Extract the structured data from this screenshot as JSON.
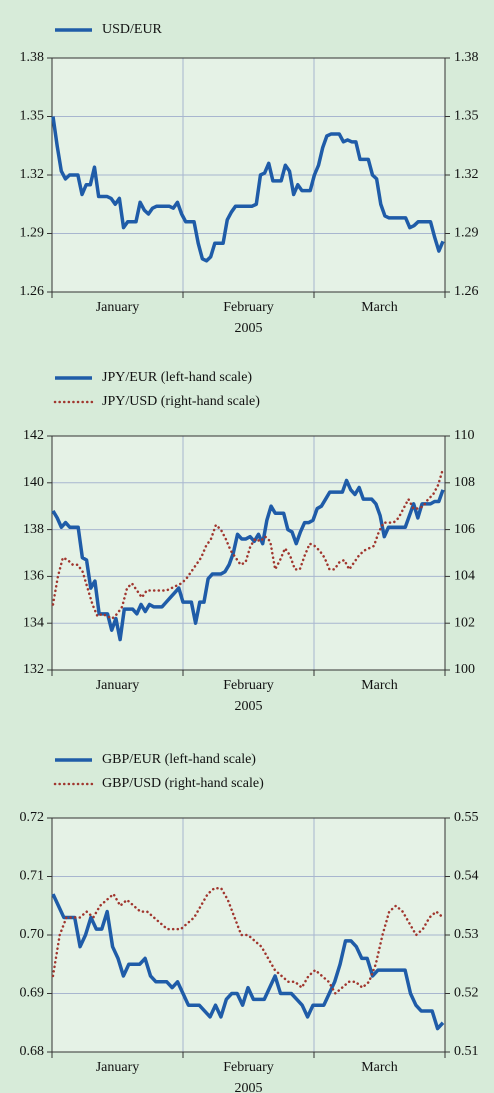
{
  "chart_data": [
    {
      "type": "line",
      "x_labels": [
        "January",
        "February",
        "March"
      ],
      "xlabel": "2005",
      "ylim": [
        1.26,
        1.38
      ],
      "yticks": [
        1.26,
        1.29,
        1.32,
        1.35,
        1.38
      ],
      "y2lim": [
        1.26,
        1.38
      ],
      "y2ticks": [
        1.26,
        1.29,
        1.32,
        1.35,
        1.38
      ],
      "grid": true,
      "series": [
        {
          "name": "USD/EUR",
          "color": "#1f5ca8",
          "style": "solid",
          "axis": "y",
          "values": [
            1.35,
            1.335,
            1.322,
            1.318,
            1.32,
            1.32,
            1.32,
            1.31,
            1.315,
            1.315,
            1.324,
            1.309,
            1.309,
            1.309,
            1.308,
            1.305,
            1.308,
            1.293,
            1.296,
            1.296,
            1.296,
            1.306,
            1.302,
            1.3,
            1.303,
            1.304,
            1.304,
            1.304,
            1.304,
            1.303,
            1.306,
            1.3,
            1.296,
            1.296,
            1.296,
            1.285,
            1.277,
            1.276,
            1.278,
            1.285,
            1.285,
            1.285,
            1.297,
            1.301,
            1.304,
            1.304,
            1.304,
            1.304,
            1.304,
            1.305,
            1.32,
            1.321,
            1.326,
            1.317,
            1.317,
            1.317,
            1.325,
            1.322,
            1.31,
            1.315,
            1.312,
            1.312,
            1.312,
            1.32,
            1.325,
            1.334,
            1.34,
            1.341,
            1.341,
            1.341,
            1.337,
            1.338,
            1.337,
            1.337,
            1.328,
            1.328,
            1.328,
            1.32,
            1.318,
            1.305,
            1.299,
            1.298,
            1.298,
            1.298,
            1.298,
            1.298,
            1.293,
            1.294,
            1.296,
            1.296,
            1.296,
            1.296,
            1.288,
            1.281,
            1.286
          ]
        }
      ]
    },
    {
      "type": "line",
      "x_labels": [
        "January",
        "February",
        "March"
      ],
      "xlabel": "2005",
      "ylim": [
        132,
        142
      ],
      "yticks": [
        132,
        134,
        136,
        138,
        140,
        142
      ],
      "y2lim": [
        100,
        110
      ],
      "y2ticks": [
        100,
        102,
        104,
        106,
        108,
        110
      ],
      "grid": true,
      "series": [
        {
          "name": "JPY/EUR (left-hand scale)",
          "color": "#1f5ca8",
          "style": "solid",
          "axis": "y",
          "values": [
            138.8,
            138.5,
            138.1,
            138.3,
            138.1,
            138.1,
            138.1,
            136.8,
            136.7,
            135.5,
            135.8,
            134.4,
            134.4,
            134.4,
            133.7,
            134.2,
            133.3,
            134.6,
            134.6,
            134.6,
            134.4,
            134.8,
            134.5,
            134.8,
            134.7,
            134.7,
            134.7,
            134.9,
            135.1,
            135.3,
            135.5,
            134.9,
            134.9,
            134.9,
            134.0,
            134.9,
            134.9,
            135.9,
            136.1,
            136.1,
            136.1,
            136.2,
            136.5,
            137.0,
            137.8,
            137.6,
            137.6,
            137.7,
            137.5,
            137.8,
            137.4,
            138.4,
            139.0,
            138.7,
            138.7,
            138.7,
            138.0,
            137.9,
            137.4,
            137.9,
            138.3,
            138.3,
            138.4,
            138.9,
            139.0,
            139.3,
            139.6,
            139.6,
            139.6,
            139.6,
            140.1,
            139.7,
            139.5,
            139.8,
            139.3,
            139.3,
            139.3,
            139.1,
            138.6,
            137.7,
            138.1,
            138.1,
            138.1,
            138.1,
            138.1,
            138.6,
            139.1,
            138.5,
            139.1,
            139.1,
            139.1,
            139.2,
            139.2,
            139.7
          ]
        },
        {
          "name": "JPY/USD (right-hand scale)",
          "color": "#a0362e",
          "style": "dotted",
          "axis": "y2",
          "values": [
            102.8,
            104.0,
            104.8,
            104.7,
            104.5,
            104.5,
            104.2,
            103.5,
            102.8,
            102.3,
            102.4,
            102.3,
            102.2,
            102.4,
            102.7,
            103.5,
            103.7,
            103.4,
            103.1,
            103.4,
            103.4,
            103.4,
            103.4,
            103.4,
            103.5,
            103.6,
            103.7,
            103.9,
            104.2,
            104.5,
            104.8,
            105.3,
            105.6,
            106.2,
            106.0,
            105.6,
            105.1,
            104.8,
            104.5,
            104.6,
            105.3,
            105.6,
            105.5,
            105.7,
            105.5,
            104.3,
            104.7,
            105.2,
            104.9,
            104.3,
            104.3,
            104.9,
            105.4,
            105.3,
            105.1,
            104.8,
            104.3,
            104.3,
            104.6,
            104.7,
            104.3,
            104.6,
            104.9,
            105.1,
            105.2,
            105.3,
            105.9,
            106.3,
            106.3,
            106.3,
            106.5,
            106.9,
            107.3,
            106.9,
            106.9,
            107.0,
            107.3,
            107.5,
            107.9,
            108.6
          ]
        }
      ]
    },
    {
      "type": "line",
      "x_labels": [
        "January",
        "February",
        "March"
      ],
      "xlabel": "2005",
      "ylim": [
        0.68,
        0.72
      ],
      "yticks": [
        0.68,
        0.69,
        {
          "value": 0.7,
          "label": "0.70"
        },
        0.71,
        0.72
      ],
      "y2lim": [
        0.51,
        0.55
      ],
      "y2ticks": [
        0.51,
        0.52,
        0.53,
        0.54,
        0.55
      ],
      "grid": true,
      "series": [
        {
          "name": "GBP/EUR (left-hand scale)",
          "color": "#1f5ca8",
          "style": "solid",
          "axis": "y",
          "values": [
            0.707,
            0.705,
            0.703,
            0.703,
            0.703,
            0.698,
            0.7,
            0.703,
            0.701,
            0.701,
            0.704,
            0.698,
            0.696,
            0.693,
            0.695,
            0.695,
            0.695,
            0.696,
            0.693,
            0.692,
            0.692,
            0.692,
            0.691,
            0.692,
            0.69,
            0.688,
            0.688,
            0.688,
            0.687,
            0.686,
            0.688,
            0.686,
            0.689,
            0.69,
            0.69,
            0.688,
            0.691,
            0.689,
            0.689,
            0.689,
            0.691,
            0.693,
            0.69,
            0.69,
            0.69,
            0.689,
            0.688,
            0.686,
            0.688,
            0.688,
            0.688,
            0.69,
            0.692,
            0.695,
            0.699,
            0.699,
            0.698,
            0.696,
            0.696,
            0.693,
            0.694,
            0.694,
            0.694,
            0.694,
            0.694,
            0.694,
            0.69,
            0.688,
            0.687,
            0.687,
            0.687,
            0.684,
            0.685
          ]
        },
        {
          "name": "GBP/USD (right-hand scale)",
          "color": "#a0362e",
          "style": "dotted",
          "axis": "y2",
          "values": [
            0.523,
            0.53,
            0.533,
            0.533,
            0.533,
            0.534,
            0.533,
            0.535,
            0.536,
            0.537,
            0.535,
            0.536,
            0.535,
            0.534,
            0.534,
            0.533,
            0.532,
            0.531,
            0.531,
            0.531,
            0.532,
            0.533,
            0.535,
            0.537,
            0.538,
            0.538,
            0.536,
            0.533,
            0.53,
            0.53,
            0.529,
            0.528,
            0.526,
            0.524,
            0.523,
            0.522,
            0.522,
            0.521,
            0.523,
            0.524,
            0.523,
            0.522,
            0.52,
            0.521,
            0.522,
            0.522,
            0.521,
            0.522,
            0.525,
            0.53,
            0.534,
            0.535,
            0.534,
            0.532,
            0.53,
            0.531,
            0.533,
            0.534,
            0.533
          ]
        }
      ]
    }
  ]
}
